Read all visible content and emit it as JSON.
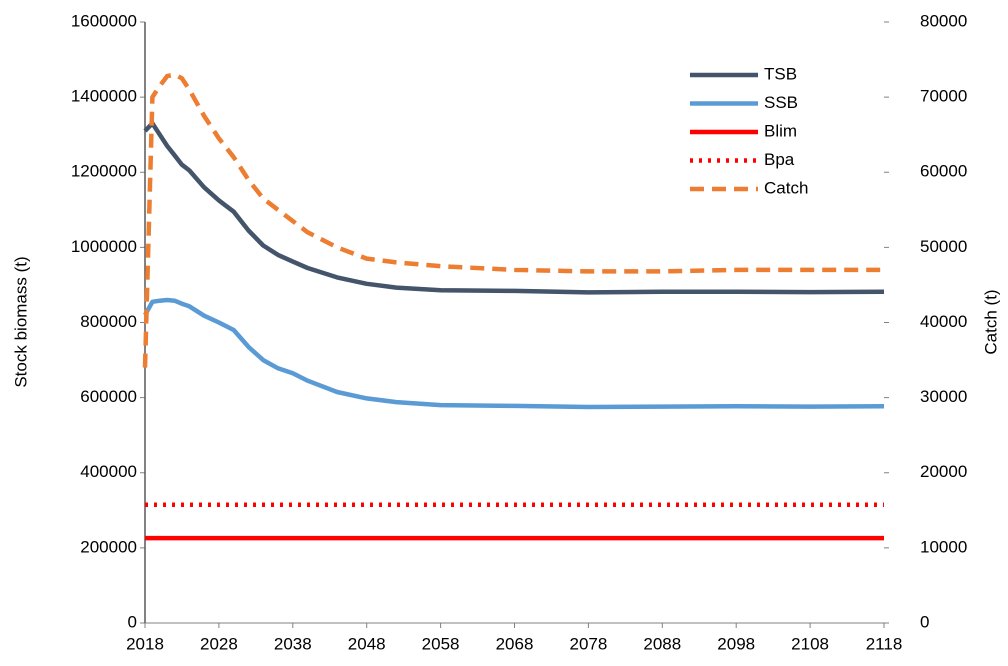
{
  "chart_data": {
    "type": "line",
    "y_label": "Stock biomass (t)",
    "y2_label": "Catch (t)",
    "x": [
      2018,
      2019,
      2020,
      2021,
      2022,
      2023,
      2024,
      2026,
      2028,
      2030,
      2032,
      2034,
      2036,
      2038,
      2040,
      2044,
      2048,
      2052,
      2058,
      2068,
      2078,
      2088,
      2098,
      2108,
      2118
    ],
    "xlim": [
      2018,
      2118
    ],
    "xticks": [
      2018,
      2028,
      2038,
      2048,
      2058,
      2068,
      2078,
      2088,
      2098,
      2108,
      2118
    ],
    "ylim": [
      0,
      1600000
    ],
    "yticks": [
      0,
      200000,
      400000,
      600000,
      800000,
      1000000,
      1200000,
      1400000,
      1600000
    ],
    "y2lim": [
      0,
      80000
    ],
    "y2ticks": [
      0,
      10000,
      20000,
      30000,
      40000,
      50000,
      60000,
      70000,
      80000
    ],
    "legend": "upper right",
    "series": [
      {
        "name": "TSB",
        "color": "#44546a",
        "dash": "solid",
        "values": [
          1310000,
          1330000,
          1300000,
          1270000,
          1245000,
          1220000,
          1205000,
          1160000,
          1125000,
          1095000,
          1045000,
          1005000,
          980000,
          962000,
          945000,
          920000,
          903000,
          893000,
          886000,
          884000,
          880000,
          882000,
          882000,
          881000,
          882000
        ]
      },
      {
        "name": "SSB",
        "color": "#5b9bd5",
        "dash": "solid",
        "values": [
          820000,
          855000,
          858000,
          860000,
          858000,
          850000,
          843000,
          818000,
          800000,
          780000,
          735000,
          700000,
          678000,
          665000,
          645000,
          615000,
          598000,
          588000,
          580000,
          578000,
          575000,
          576000,
          577000,
          576000,
          577000
        ]
      },
      {
        "name": "Blim",
        "color": "#ff0000",
        "dash": "solid",
        "values": [
          226000,
          226000,
          226000,
          226000,
          226000,
          226000,
          226000,
          226000,
          226000,
          226000,
          226000,
          226000,
          226000,
          226000,
          226000,
          226000,
          226000,
          226000,
          226000,
          226000,
          226000,
          226000,
          226000,
          226000,
          226000
        ]
      },
      {
        "name": "Bpa",
        "color": "#ff0000",
        "dash": "dotted",
        "values": [
          315000,
          315000,
          315000,
          315000,
          315000,
          315000,
          315000,
          315000,
          315000,
          315000,
          315000,
          315000,
          315000,
          315000,
          315000,
          315000,
          315000,
          315000,
          315000,
          315000,
          315000,
          315000,
          315000,
          315000,
          315000
        ]
      },
      {
        "name": "Catch",
        "color": "#ed7d31",
        "dash": "dashed",
        "axis": "y2",
        "values": [
          34000,
          70000,
          71500,
          72800,
          73000,
          72500,
          71000,
          67500,
          64500,
          62000,
          59000,
          56500,
          55000,
          53500,
          52000,
          50000,
          48500,
          48000,
          47500,
          47000,
          46800,
          46800,
          47000,
          47000,
          47000
        ]
      }
    ]
  }
}
